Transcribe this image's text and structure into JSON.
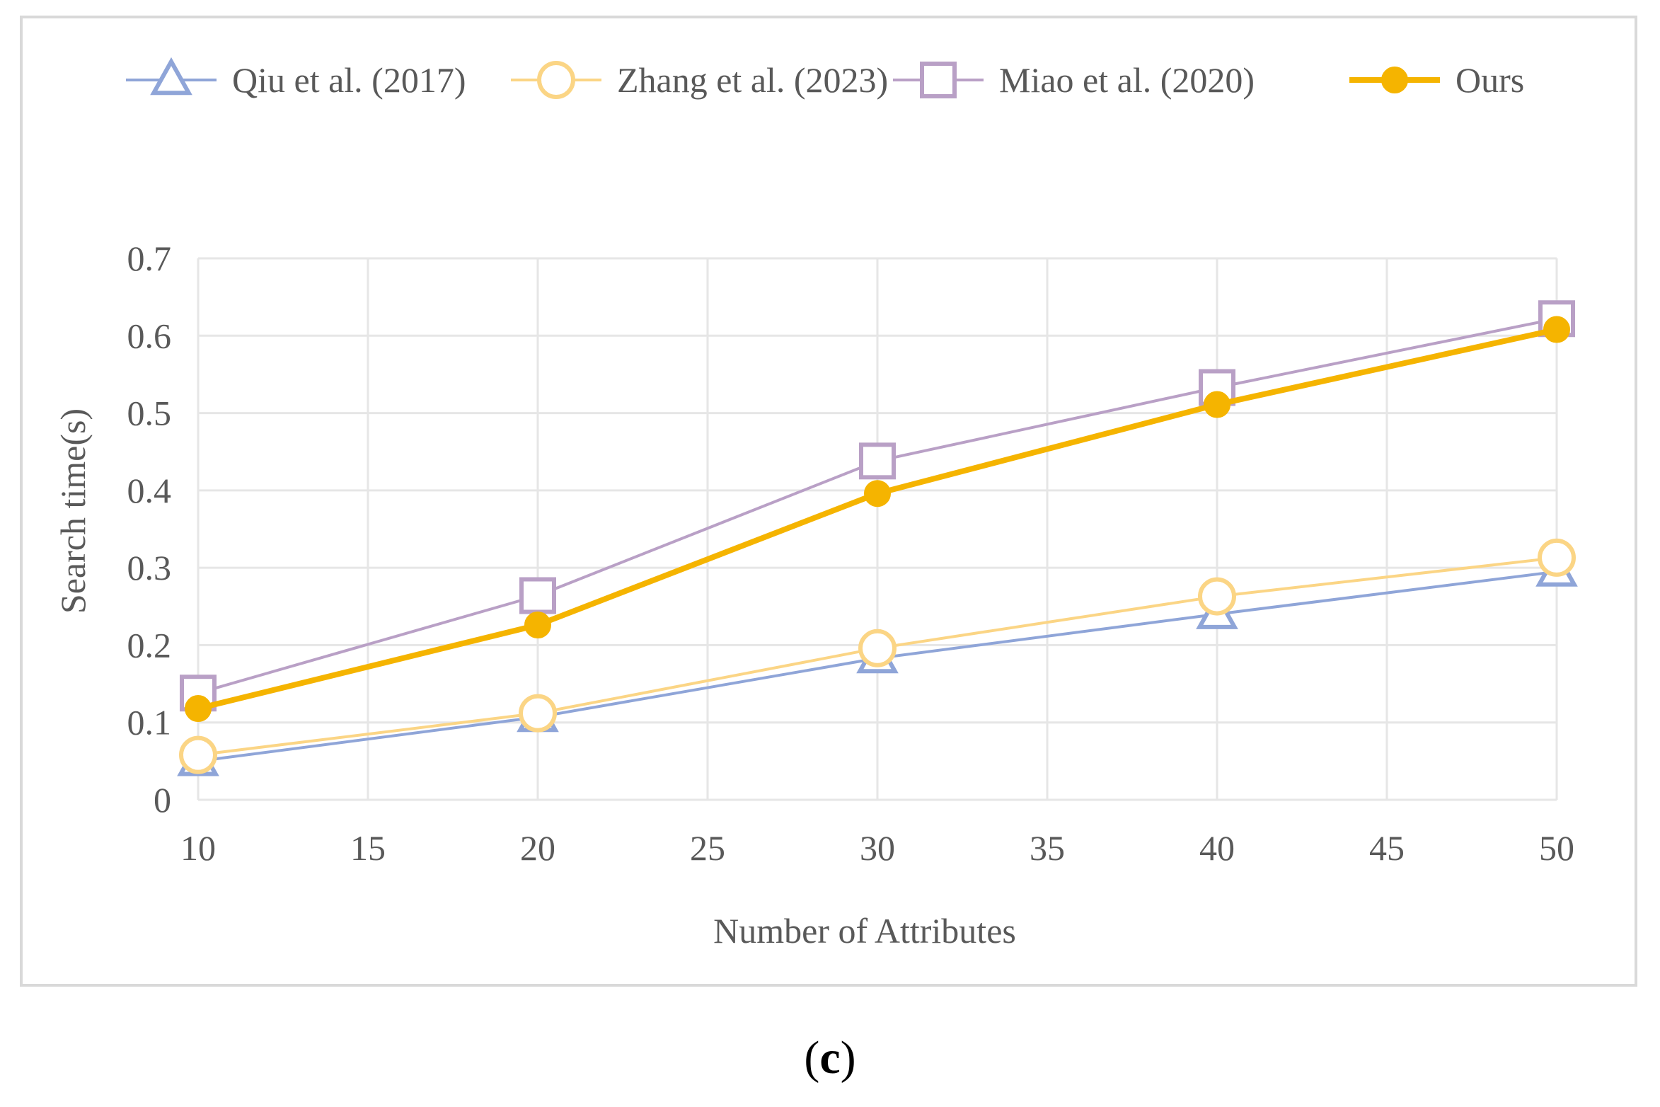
{
  "panel_label": {
    "open": "(",
    "letter": "c",
    "close": ")"
  },
  "colors": {
    "qiu": "#8fa5d8",
    "zhang": "#fbd585",
    "miao": "#b9a0c6",
    "ours": "#f5b400",
    "grid": "#e6e6e6",
    "text": "#595959"
  },
  "chart_data": {
    "type": "line",
    "title": "",
    "xlabel": "Number of Attributes",
    "ylabel": "Search time(s)",
    "xlim": [
      10,
      50
    ],
    "ylim": [
      0,
      0.7
    ],
    "x_ticks": [
      10,
      15,
      20,
      25,
      30,
      35,
      40,
      45,
      50
    ],
    "x_tick_labels": [
      "10",
      "15",
      "20",
      "25",
      "30",
      "35",
      "40",
      "45",
      "50"
    ],
    "y_ticks": [
      0,
      0.1,
      0.2,
      0.3,
      0.4,
      0.5,
      0.6,
      0.7
    ],
    "y_tick_labels": [
      "0",
      "0.1",
      "0.2",
      "0.3",
      "0.4",
      "0.5",
      "0.6",
      "0.7"
    ],
    "grid": true,
    "legend_position": "top",
    "x": [
      10,
      20,
      30,
      40,
      50
    ],
    "series": [
      {
        "name": "Qiu et al. (2017)",
        "key": "qiu",
        "marker": "triangle",
        "values": [
          0.05,
          0.107,
          0.183,
          0.24,
          0.295
        ]
      },
      {
        "name": "Zhang et al. (2023)",
        "key": "zhang",
        "marker": "circle-open",
        "values": [
          0.058,
          0.112,
          0.196,
          0.263,
          0.313
        ]
      },
      {
        "name": "Miao et al. (2020)",
        "key": "miao",
        "marker": "square",
        "values": [
          0.138,
          0.264,
          0.438,
          0.533,
          0.622
        ]
      },
      {
        "name": "Ours",
        "key": "ours",
        "marker": "circle-filled",
        "values": [
          0.118,
          0.226,
          0.396,
          0.511,
          0.608
        ]
      }
    ]
  }
}
